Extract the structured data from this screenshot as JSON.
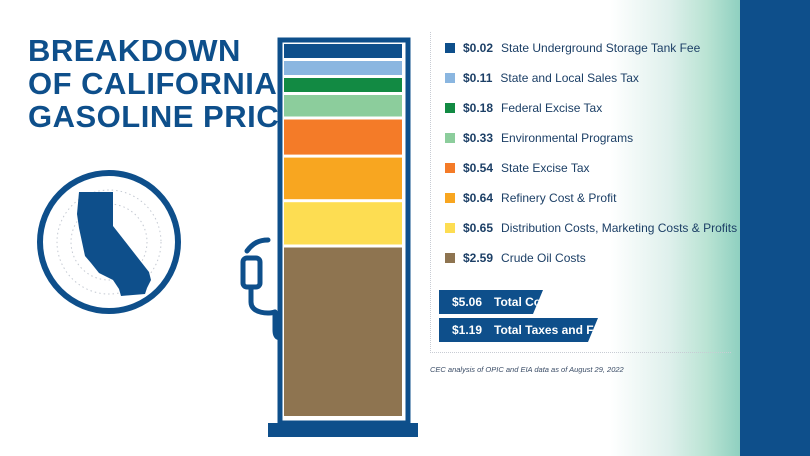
{
  "title_lines": [
    "BREAKDOWN",
    "OF CALIFORNIA",
    "GASOLINE PRICES"
  ],
  "colors": {
    "brand_blue": "#0e4f8b",
    "text_dark": "#1c3f66"
  },
  "chart_data": {
    "type": "bar",
    "stacked": true,
    "orientation": "vertical",
    "unit": "USD per gallon",
    "series": [
      {
        "name": "State Underground Storage Tank Fee",
        "value": 0.02,
        "label": "$0.02",
        "color": "#0e4f8b"
      },
      {
        "name": "State and Local Sales Tax",
        "value": 0.11,
        "label": "$0.11",
        "color": "#8ab6e0"
      },
      {
        "name": "Federal Excise Tax",
        "value": 0.18,
        "label": "$0.18",
        "color": "#128a43"
      },
      {
        "name": "Environmental Programs",
        "value": 0.33,
        "label": "$0.33",
        "color": "#8ccd9c"
      },
      {
        "name": "State Excise Tax",
        "value": 0.54,
        "label": "$0.54",
        "color": "#f47b28"
      },
      {
        "name": "Refinery Cost & Profit",
        "value": 0.64,
        "label": "$0.64",
        "color": "#f8a620"
      },
      {
        "name": "Distribution Costs, Marketing Costs & Profits",
        "value": 0.65,
        "label": "$0.65",
        "color": "#fddd52"
      },
      {
        "name": "Crude Oil Costs",
        "value": 2.59,
        "label": "$2.59",
        "color": "#8e7450"
      }
    ],
    "totals": [
      {
        "value": "$5.06",
        "label": "Total Cost"
      },
      {
        "value": "$1.19",
        "label": "Total Taxes and Fees"
      }
    ],
    "source": "CEC analysis of OPIC and EIA data as of August 29, 2022"
  }
}
